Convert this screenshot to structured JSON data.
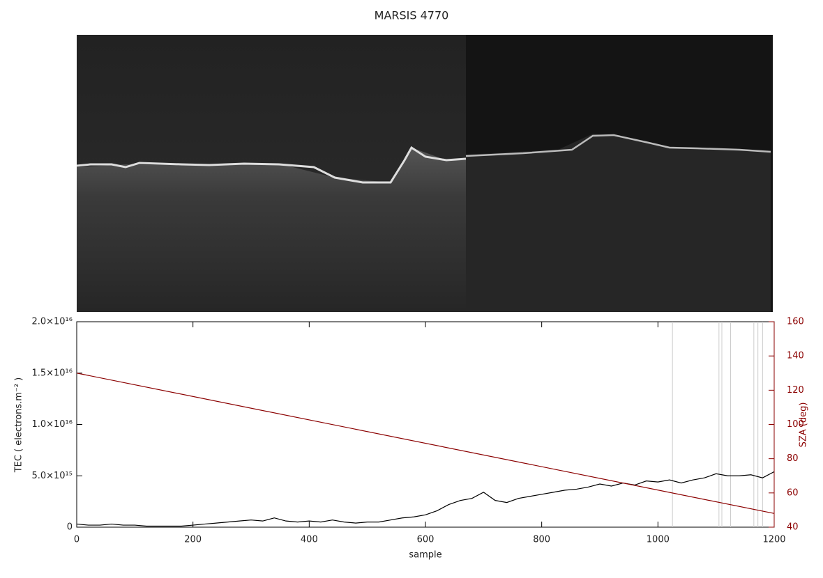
{
  "chart_data": {
    "type": "line",
    "title": "MARSIS 4770",
    "xlabel": "sample",
    "ylabel": "TEC ( electrons.m⁻² )",
    "y2label": "SZA (deg)",
    "xlim": [
      0,
      1200
    ],
    "xticks": [
      0,
      200,
      400,
      600,
      800,
      1000,
      1200
    ],
    "ylim": [
      0,
      2e+16
    ],
    "yticks": [
      0,
      {
        "value": 5000000000000000.0,
        "label": "5.0×10¹⁵"
      },
      {
        "value": 1e+16,
        "label": "1.0×10¹⁶"
      },
      {
        "value": 1.5e+16,
        "label": "1.5×10¹⁶"
      },
      {
        "value": 2e+16,
        "label": "2.0×10¹⁶"
      }
    ],
    "y2lim": [
      40,
      160
    ],
    "y2ticks": [
      40,
      60,
      80,
      100,
      120,
      140,
      160
    ],
    "vlines": [
      1025,
      1105,
      1110,
      1125,
      1165,
      1172,
      1180
    ],
    "vline_color": "#cccccc",
    "series": [
      {
        "name": "TEC",
        "color": "#000000",
        "x": [
          0,
          20,
          40,
          60,
          80,
          100,
          120,
          140,
          160,
          180,
          200,
          220,
          240,
          260,
          280,
          300,
          320,
          340,
          360,
          380,
          400,
          420,
          440,
          460,
          480,
          500,
          520,
          540,
          560,
          580,
          600,
          620,
          640,
          660,
          680,
          700,
          720,
          740,
          760,
          780,
          800,
          820,
          840,
          860,
          880,
          900,
          920,
          940,
          960,
          980,
          1000,
          1020,
          1040,
          1060,
          1080,
          1100,
          1120,
          1140,
          1160,
          1180,
          1200
        ],
        "values": [
          300000000000000.0,
          200000000000000.0,
          200000000000000.0,
          300000000000000.0,
          200000000000000.0,
          200000000000000.0,
          100000000000000.0,
          100000000000000.0,
          100000000000000.0,
          100000000000000.0,
          200000000000000.0,
          300000000000000.0,
          400000000000000.0,
          500000000000000.0,
          600000000000000.0,
          700000000000000.0,
          600000000000000.0,
          900000000000000.0,
          600000000000000.0,
          500000000000000.0,
          600000000000000.0,
          500000000000000.0,
          700000000000000.0,
          500000000000000.0,
          400000000000000.0,
          500000000000000.0,
          500000000000000.0,
          700000000000000.0,
          900000000000000.0,
          1000000000000000.0,
          1200000000000000.0,
          1600000000000000.0,
          2200000000000000.0,
          2600000000000000.0,
          2800000000000000.0,
          3400000000000000.0,
          2600000000000000.0,
          2400000000000000.0,
          2800000000000000.0,
          3000000000000000.0,
          3200000000000000.0,
          3400000000000000.0,
          3600000000000000.0,
          3700000000000000.0,
          3900000000000000.0,
          4200000000000000.0,
          4000000000000000.0,
          4300000000000000.0,
          4100000000000000.0,
          4500000000000000.0,
          4400000000000000.0,
          4600000000000000.0,
          4300000000000000.0,
          4600000000000000.0,
          4800000000000000.0,
          5200000000000000.0,
          5000000000000000.0,
          5000000000000000.0,
          5100000000000000.0,
          4800000000000000.0,
          5400000000000000.0
        ]
      },
      {
        "name": "SZA",
        "color": "#8b0000",
        "axis": "y2",
        "x": [
          0,
          1200
        ],
        "values": [
          130,
          48
        ]
      }
    ]
  }
}
